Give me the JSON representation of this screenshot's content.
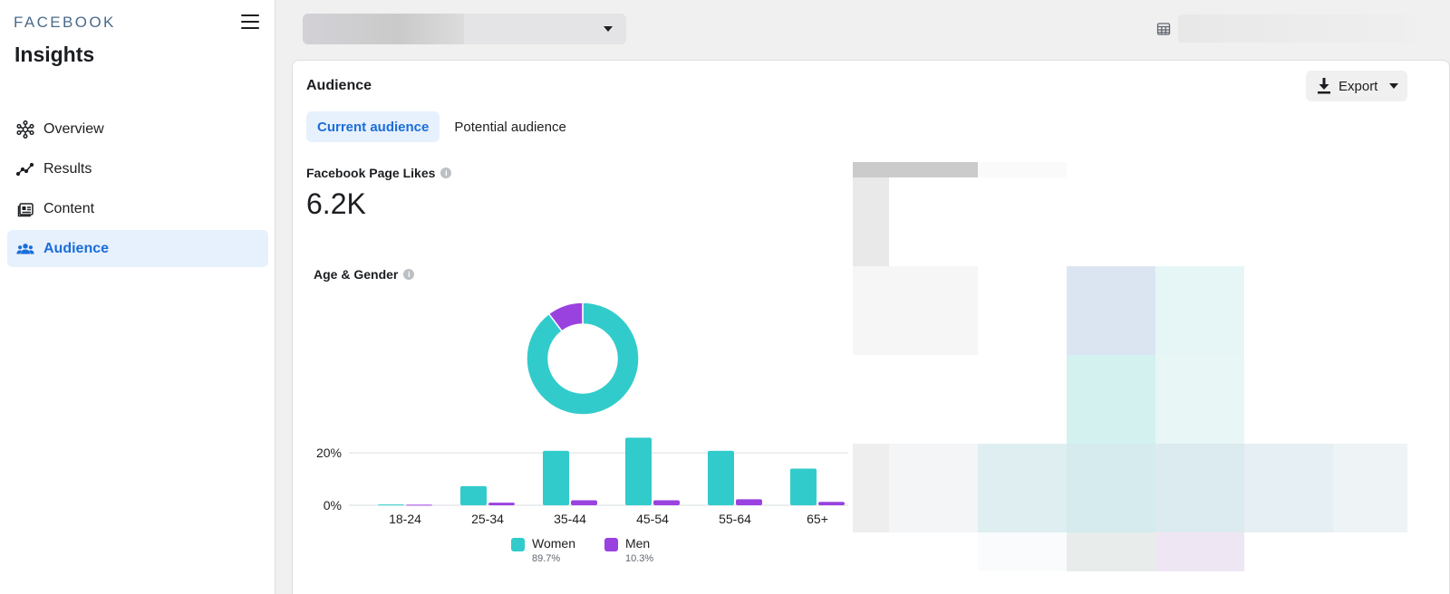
{
  "sidebar": {
    "brand": "FACEBOOK",
    "title": "Insights",
    "items": [
      {
        "label": "Overview",
        "icon": "overview-icon",
        "active": false
      },
      {
        "label": "Results",
        "icon": "results-icon",
        "active": false
      },
      {
        "label": "Content",
        "icon": "content-icon",
        "active": false
      },
      {
        "label": "Audience",
        "icon": "audience-icon",
        "active": true
      }
    ]
  },
  "topbar": {
    "page_selector_value": "",
    "date_range_value": ""
  },
  "card": {
    "title": "Audience",
    "export_label": "Export",
    "tabs": [
      {
        "label": "Current audience",
        "active": true
      },
      {
        "label": "Potential audience",
        "active": false
      }
    ],
    "metric": {
      "label": "Facebook Page Likes",
      "value": "6.2K"
    },
    "age_gender_label": "Age & Gender"
  },
  "colors": {
    "women": "#32cbcb",
    "men": "#9a42e0",
    "accent": "#1a6ed8",
    "active_bg": "#e7f0fd"
  },
  "chart_data": {
    "type": "bar",
    "title": "Age & Gender",
    "categories": [
      "18-24",
      "25-34",
      "35-44",
      "45-54",
      "55-64",
      "65+"
    ],
    "series": [
      {
        "name": "Women",
        "percent_label": "89.7%",
        "values": [
          0.3,
          7.3,
          20.8,
          25.8,
          20.8,
          14.0
        ]
      },
      {
        "name": "Men",
        "percent_label": "10.3%",
        "values": [
          0.2,
          1.0,
          1.9,
          1.9,
          2.3,
          1.3
        ]
      }
    ],
    "y_ticks": [
      "0%",
      "20%"
    ],
    "ylim": [
      0,
      28
    ],
    "donut": {
      "type": "pie",
      "values": [
        89.7,
        10.3
      ]
    },
    "legend_position": "bottom"
  }
}
